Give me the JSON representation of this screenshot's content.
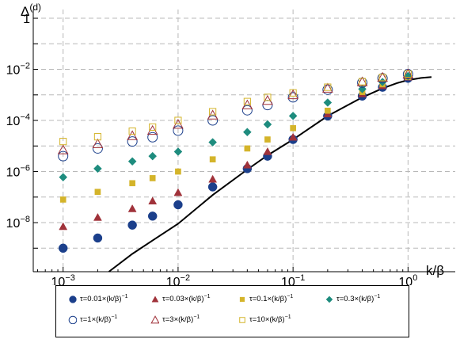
{
  "chart_data": {
    "type": "scatter",
    "xlabel": "k/β",
    "ylabel": "Δ^(d)",
    "x_scale": "log",
    "y_scale": "log",
    "xlim": [
      0.00055,
      1.6
    ],
    "ylim": [
      1.2e-10,
      2.2
    ],
    "grid": true,
    "legend_position": "bottom",
    "x_ticks": [
      0.001,
      0.01,
      0.1,
      1
    ],
    "x_tick_labels": [
      {
        "base": "10",
        "exp": "−3"
      },
      {
        "base": "10",
        "exp": "−2"
      },
      {
        "base": "10",
        "exp": "−1"
      },
      {
        "base": "10",
        "exp": "0"
      }
    ],
    "y_ticks": [
      1e-08,
      1e-06,
      0.0001,
      0.01,
      1
    ],
    "y_tick_labels": [
      {
        "base": "10",
        "exp": "−8"
      },
      {
        "base": "10",
        "exp": "−6"
      },
      {
        "base": "10",
        "exp": "−4"
      },
      {
        "base": "10",
        "exp": "−2"
      },
      {
        "base": "1",
        "exp": ""
      }
    ],
    "x": [
      0.001,
      0.002,
      0.004,
      0.006,
      0.01,
      0.02,
      0.04,
      0.06,
      0.1,
      0.2,
      0.4,
      0.6,
      1.0
    ],
    "series": [
      {
        "name": "τ=0.01×(k/β)^−1",
        "marker": "circle-filled",
        "color": "#1b3f8b",
        "values": [
          1e-09,
          2.5e-09,
          8e-09,
          1.8e-08,
          5e-08,
          2.5e-07,
          1.3e-06,
          4e-06,
          1.8e-05,
          0.00015,
          0.0009,
          0.002,
          0.0045
        ]
      },
      {
        "name": "τ=0.03×(k/β)^−1",
        "marker": "triangle-filled",
        "color": "#a0323a",
        "values": [
          7e-09,
          1.6e-08,
          3.5e-08,
          7e-08,
          1.5e-07,
          5e-07,
          1.8e-06,
          6e-06,
          2.2e-05,
          0.00018,
          0.0011,
          0.0023,
          0.005
        ]
      },
      {
        "name": "τ=0.1×(k/β)^−1",
        "marker": "square-filled",
        "color": "#d4b42a",
        "values": [
          8e-08,
          1.6e-07,
          3.5e-07,
          5.5e-07,
          1e-06,
          3e-06,
          8e-06,
          1.8e-05,
          5e-05,
          0.00024,
          0.0013,
          0.0026,
          0.005
        ]
      },
      {
        "name": "τ=0.3×(k/β)^−1",
        "marker": "diamond-filled",
        "color": "#1e8c7e",
        "values": [
          6e-07,
          1.3e-06,
          2.5e-06,
          4e-06,
          6e-06,
          1.4e-05,
          3.5e-05,
          7e-05,
          0.00015,
          0.0005,
          0.0017,
          0.0032,
          0.0055
        ]
      },
      {
        "name": "τ=1×(k/β)^−1",
        "marker": "circle-open",
        "color": "#1b3f8b",
        "values": [
          4e-06,
          8e-06,
          1.5e-05,
          2.2e-05,
          4e-05,
          0.0001,
          0.00025,
          0.0004,
          0.0008,
          0.0016,
          0.003,
          0.0045,
          0.0065
        ]
      },
      {
        "name": "τ=3×(k/β)^−1",
        "marker": "triangle-open",
        "color": "#a0323a",
        "values": [
          7e-06,
          1.2e-05,
          2.5e-05,
          4e-05,
          7e-05,
          0.00016,
          0.0004,
          0.0006,
          0.001,
          0.0018,
          0.0032,
          0.0048,
          0.0065
        ]
      },
      {
        "name": "τ=10×(k/β)^−1",
        "marker": "square-open",
        "color": "#d4b42a",
        "values": [
          1.5e-05,
          2.3e-05,
          3.8e-05,
          5.5e-05,
          0.0001,
          0.00022,
          0.00055,
          0.0008,
          0.0012,
          0.002,
          0.0033,
          0.0048,
          0.0065
        ]
      }
    ],
    "curve": {
      "x": [
        0.0025,
        0.004,
        0.006,
        0.01,
        0.02,
        0.04,
        0.06,
        0.1,
        0.2,
        0.3,
        0.4,
        0.6,
        0.8,
        1.0,
        1.3,
        1.6
      ],
      "values": [
        1.2e-10,
        6e-10,
        2e-09,
        9e-09,
        1.2e-07,
        1.2e-06,
        4.3e-06,
        1.8e-05,
        0.00015,
        0.0004,
        0.0008,
        0.0018,
        0.0029,
        0.0038,
        0.0046,
        0.005
      ]
    }
  }
}
